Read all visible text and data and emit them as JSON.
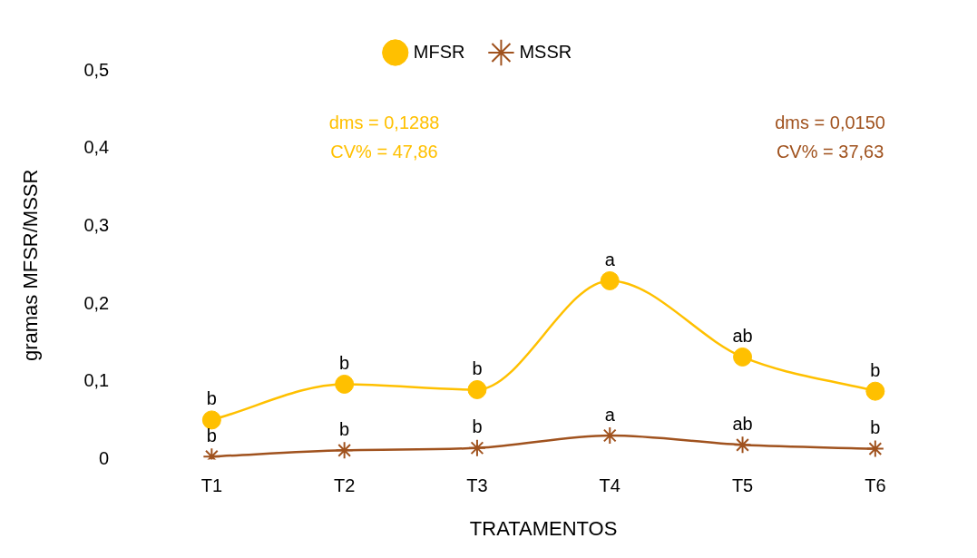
{
  "chart_data": {
    "type": "line",
    "xlabel": "TRATAMENTOS",
    "ylabel": "gramas MFSR/MSSR",
    "categories": [
      "T1",
      "T2",
      "T3",
      "T4",
      "T5",
      "T6"
    ],
    "series": [
      {
        "name": "MFSR",
        "color": "#ffc000",
        "marker": "circle",
        "values": [
          0.051,
          0.097,
          0.09,
          0.23,
          0.132,
          0.088
        ]
      },
      {
        "name": "MSSR",
        "color": "#a0521e",
        "marker": "cross",
        "values": [
          0.004,
          0.012,
          0.015,
          0.031,
          0.019,
          0.014
        ]
      }
    ],
    "ylim": [
      0,
      0.5
    ],
    "yticks": [
      0,
      {
        "value": 0.1,
        "label": "0,1"
      },
      {
        "value": 0.2,
        "label": "0,2"
      },
      {
        "value": 0.3,
        "label": "0,3"
      },
      {
        "value": 0.4,
        "label": "0,4"
      },
      {
        "value": 0.5,
        "label": "0,5"
      }
    ],
    "grid": false,
    "legend": "top",
    "annotations": [
      "dms = 0,1288\nCV% = 47,86",
      "dms = 0,0150\nCV% = 37,63",
      {
        "text": "b",
        "x": "T1",
        "y": 0.051
      },
      {
        "text": "b",
        "x": "T2",
        "y": 0.097
      },
      {
        "text": "b",
        "x": "T3",
        "y": 0.09
      },
      {
        "text": "a",
        "x": "T4",
        "y": 0.23
      },
      {
        "text": "ab",
        "x": "T5",
        "y": 0.132
      },
      {
        "text": "b",
        "x": "T6",
        "y": 0.088
      },
      {
        "text": "b",
        "x": "T1",
        "y": 0.004
      },
      {
        "text": "b",
        "x": "T2",
        "y": 0.012
      },
      {
        "text": "b",
        "x": "T3",
        "y": 0.015
      },
      {
        "text": "a",
        "x": "T4",
        "y": 0.031
      },
      {
        "text": "ab",
        "x": "T5",
        "y": 0.019
      },
      {
        "text": "b",
        "x": "T6",
        "y": 0.014
      }
    ]
  }
}
